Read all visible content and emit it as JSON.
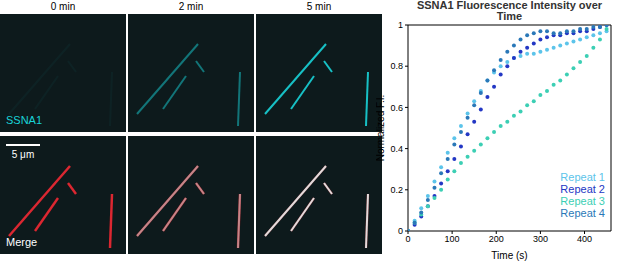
{
  "panels": {
    "time_labels": [
      "0 min",
      "2 min",
      "5 min"
    ],
    "rows": [
      {
        "label": "SSNA1",
        "color": "#19d3d8"
      },
      {
        "label": "Merge",
        "color": "#ffffff"
      }
    ],
    "scale_bar": "5 μm"
  },
  "chart_data": {
    "type": "scatter",
    "title": "SSNA1 Fluorescence Intensity over Time",
    "x_label": "Time (s)",
    "y_label": "Normalized F.I.",
    "x": [
      0,
      15,
      30,
      45,
      60,
      75,
      90,
      105,
      120,
      135,
      150,
      165,
      180,
      195,
      210,
      225,
      240,
      255,
      270,
      285,
      300,
      315,
      330,
      345,
      360,
      375,
      390,
      405,
      420,
      435,
      450
    ],
    "series": [
      {
        "name": "Repeat 1",
        "color": "#5cc4ea",
        "values": [
          0,
          0.05,
          0.11,
          0.17,
          0.24,
          0.31,
          0.38,
          0.45,
          0.51,
          0.57,
          0.63,
          0.68,
          0.73,
          0.77,
          0.8,
          0.82,
          0.84,
          0.85,
          0.86,
          0.86,
          0.87,
          0.88,
          0.89,
          0.9,
          0.91,
          0.92,
          0.93,
          0.94,
          0.95,
          0.96,
          0.97
        ]
      },
      {
        "name": "Repeat 2",
        "color": "#2337c4",
        "values": [
          0,
          0.03,
          0.07,
          0.12,
          0.17,
          0.23,
          0.29,
          0.35,
          0.41,
          0.47,
          0.53,
          0.59,
          0.65,
          0.7,
          0.76,
          0.8,
          0.84,
          0.87,
          0.89,
          0.91,
          0.93,
          0.94,
          0.95,
          0.95,
          0.96,
          0.96,
          0.97,
          0.97,
          0.98,
          0.99,
          1.0
        ]
      },
      {
        "name": "Repeat 3",
        "color": "#3ccfb4",
        "values": [
          0,
          0.04,
          0.08,
          0.12,
          0.16,
          0.2,
          0.25,
          0.29,
          0.33,
          0.36,
          0.39,
          0.42,
          0.45,
          0.48,
          0.51,
          0.53,
          0.56,
          0.58,
          0.61,
          0.63,
          0.66,
          0.68,
          0.71,
          0.73,
          0.76,
          0.79,
          0.82,
          0.85,
          0.89,
          0.93,
          0.98
        ]
      },
      {
        "name": "Repeat 4",
        "color": "#2a78b8",
        "values": [
          0,
          0.04,
          0.09,
          0.15,
          0.21,
          0.28,
          0.35,
          0.42,
          0.48,
          0.55,
          0.61,
          0.67,
          0.73,
          0.78,
          0.83,
          0.87,
          0.9,
          0.93,
          0.95,
          0.96,
          0.97,
          0.97,
          0.96,
          0.96,
          0.97,
          0.97,
          0.98,
          0.98,
          0.99,
          0.99,
          1.0
        ]
      }
    ],
    "xlim": [
      0,
      460
    ],
    "ylim": [
      0,
      1
    ],
    "xticks": [
      0,
      100,
      200,
      300,
      400
    ],
    "yticks": [
      0,
      0.2,
      0.4,
      0.6,
      0.8,
      1
    ],
    "legend": "lower right",
    "marker": "circle"
  }
}
